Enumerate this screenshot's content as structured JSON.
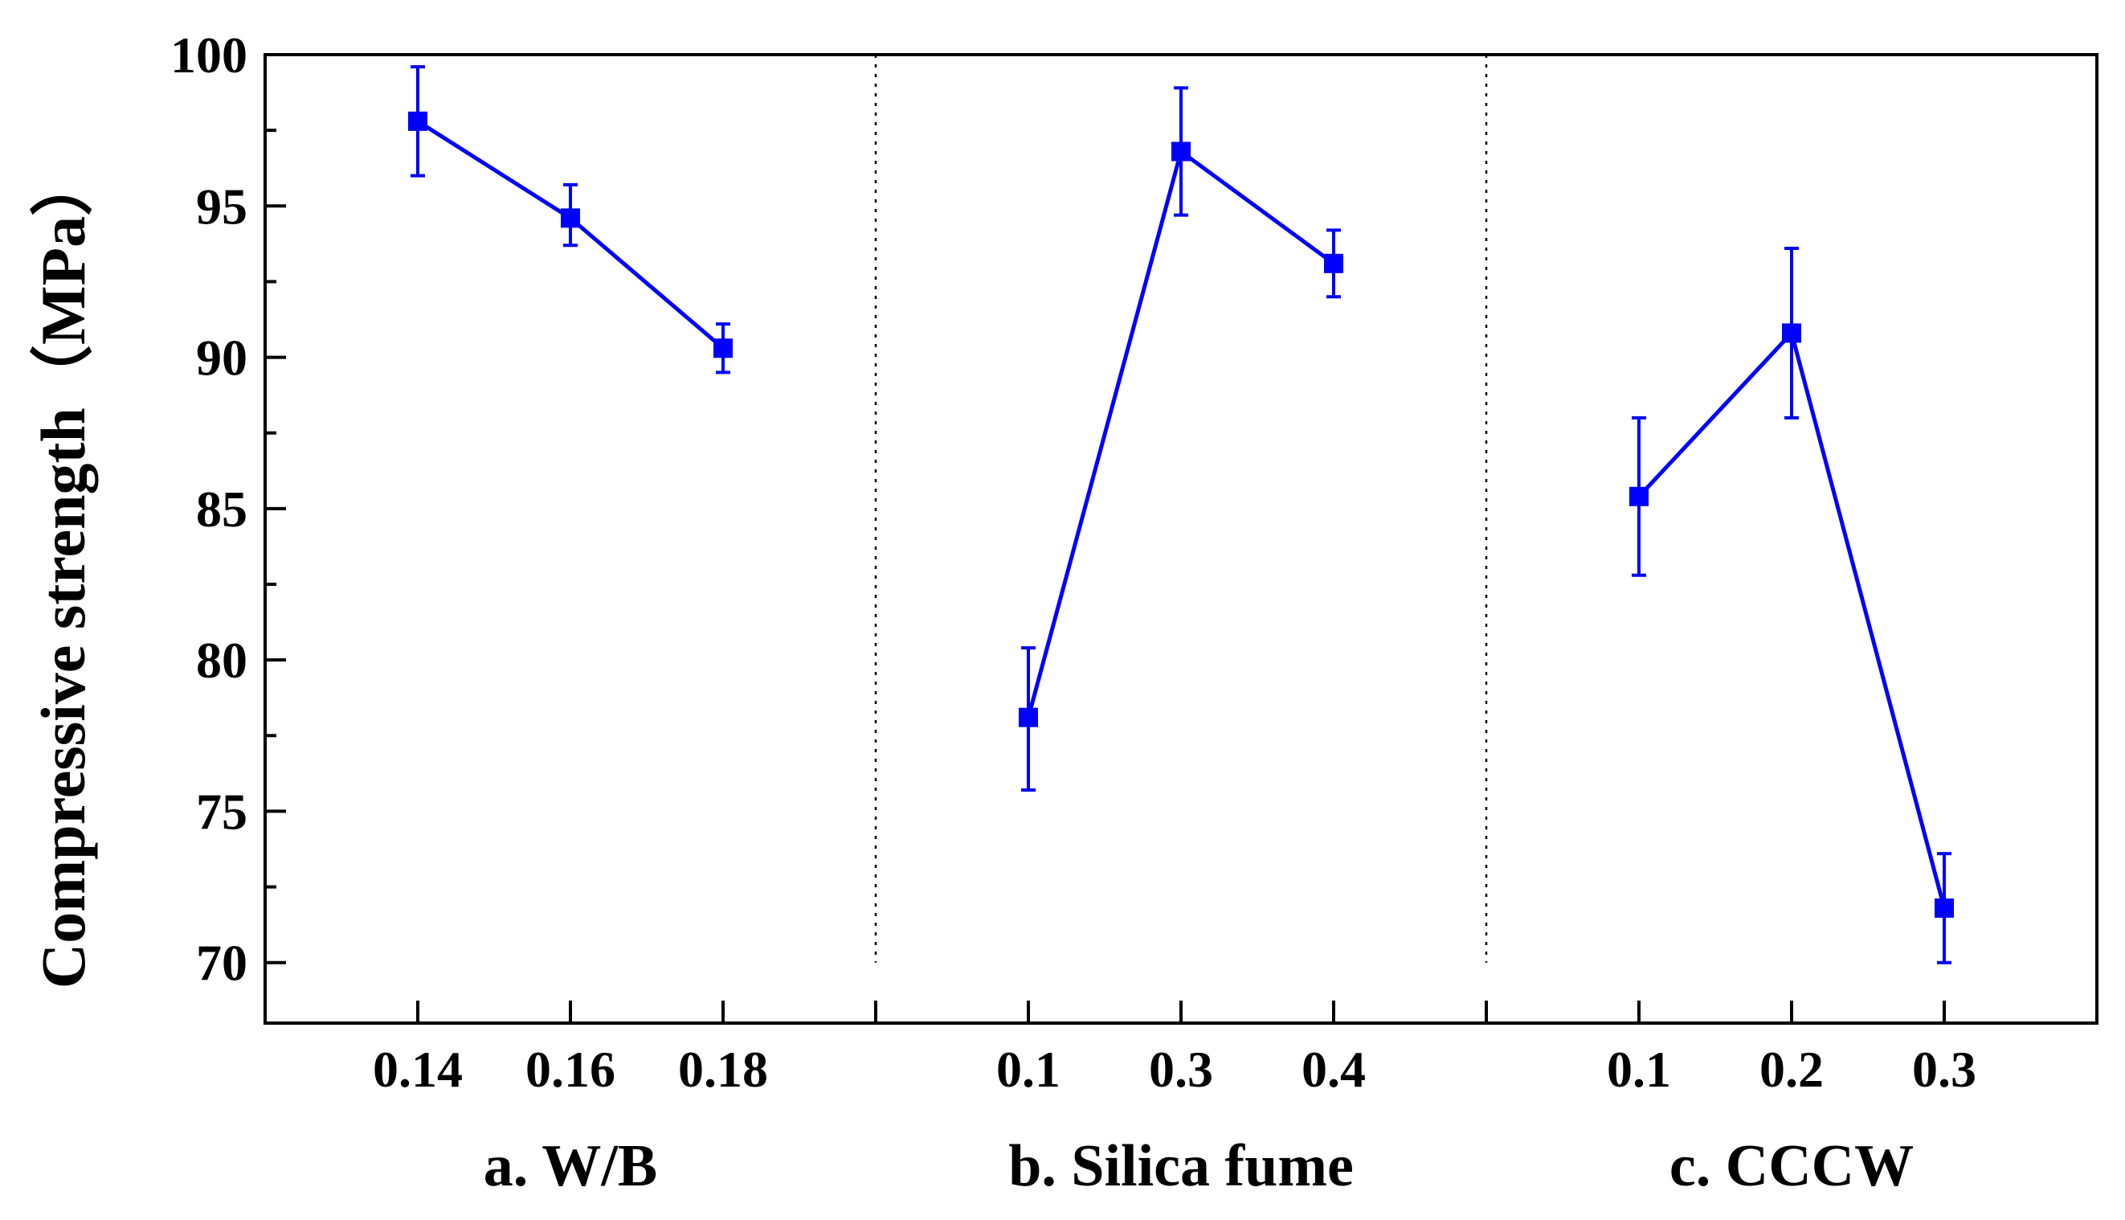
{
  "chart_data": {
    "type": "line",
    "ylabel": "Compressive strength（MPa）",
    "ylim": [
      68,
      100
    ],
    "y_ticks": [
      70,
      75,
      80,
      85,
      90,
      95,
      100
    ],
    "y_tick_labels": [
      "70",
      "75",
      "80",
      "85",
      "90",
      "95",
      "100"
    ],
    "grid": false,
    "groups": [
      {
        "label": "a. W/B",
        "categories": [
          "0.14",
          "0.16",
          "0.18"
        ],
        "values": [
          97.8,
          94.6,
          90.3
        ],
        "error_low": [
          96.0,
          93.7,
          89.5
        ],
        "error_high": [
          99.6,
          95.7,
          91.1
        ]
      },
      {
        "label": "b. Silica fume",
        "categories": [
          "0.1",
          "0.3",
          "0.4"
        ],
        "values": [
          78.1,
          96.8,
          93.1
        ],
        "error_low": [
          75.7,
          94.7,
          92.0
        ],
        "error_high": [
          80.4,
          98.9,
          94.2
        ]
      },
      {
        "label": "c. CCCW",
        "categories": [
          "0.1",
          "0.2",
          "0.3"
        ],
        "values": [
          85.4,
          90.8,
          71.8
        ],
        "error_low": [
          82.8,
          88.0,
          70.0
        ],
        "error_high": [
          88.0,
          93.6,
          73.6
        ]
      }
    ],
    "series_color": "#0000ff",
    "axis_color": "#000000",
    "marker": "square"
  }
}
